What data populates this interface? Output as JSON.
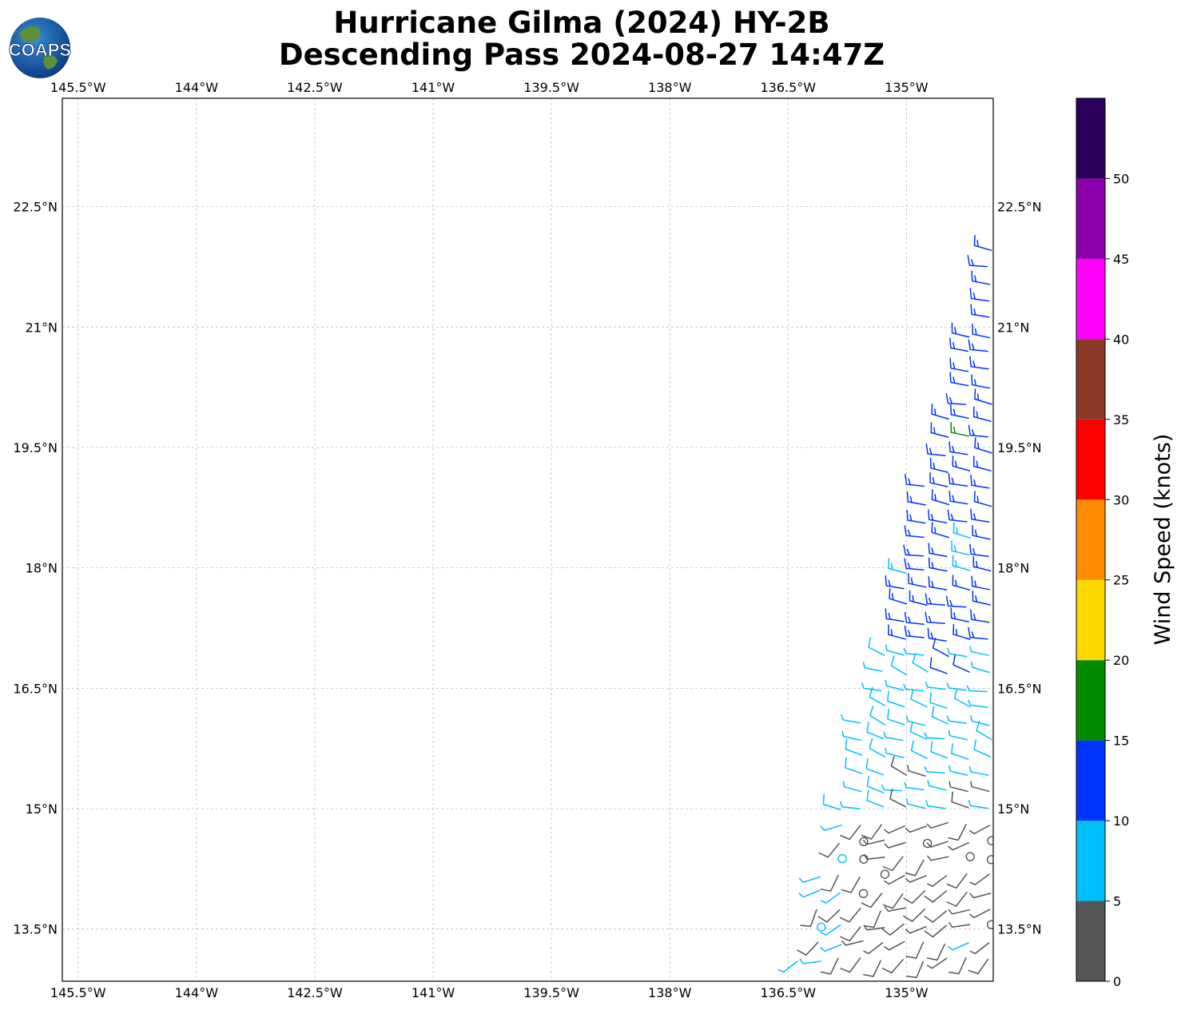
{
  "title": {
    "line1": "Hurricane Gilma (2024) HY-2B",
    "line2": "Descending Pass 2024-08-27 14:47Z"
  },
  "logo": {
    "text": "COAPS"
  },
  "map": {
    "lon_range": [
      -145.7,
      -133.9
    ],
    "lat_range": [
      12.85,
      23.85
    ],
    "lon_ticks": [
      "145.5°W",
      "144°W",
      "142.5°W",
      "141°W",
      "139.5°W",
      "138°W",
      "136.5°W",
      "135°W"
    ],
    "lat_ticks": [
      "22.5°N",
      "21°N",
      "19.5°N",
      "18°N",
      "16.5°N",
      "15°N",
      "13.5°N"
    ],
    "gridlines": true
  },
  "colorbar": {
    "label": "Wind Speed (knots)",
    "ticks": [
      "0",
      "5",
      "10",
      "15",
      "20",
      "25",
      "30",
      "35",
      "40",
      "45",
      "50"
    ],
    "colors": [
      "#555555",
      "#00bfff",
      "#0033ff",
      "#008c00",
      "#ffd700",
      "#ff8c00",
      "#ff0000",
      "#8b3a2a",
      "#ff00ff",
      "#8b00aa",
      "#2b005c"
    ]
  }
}
